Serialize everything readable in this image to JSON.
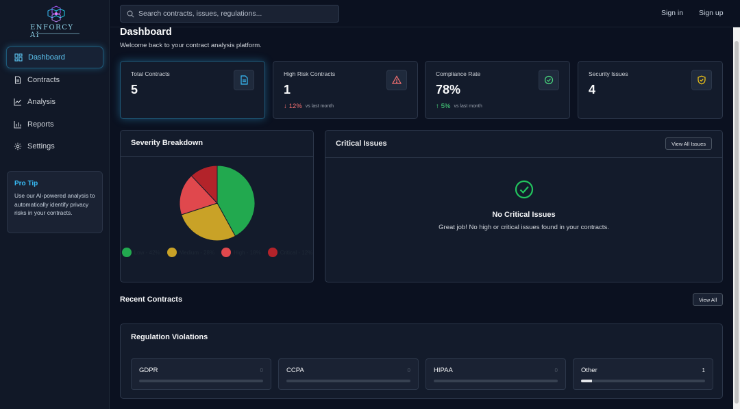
{
  "app": {
    "logo_text": "ENFORCY AI"
  },
  "sidebar": {
    "items": [
      {
        "label": "Dashboard",
        "icon": "dashboard-grid-icon",
        "active": true
      },
      {
        "label": "Contracts",
        "icon": "document-icon",
        "active": false
      },
      {
        "label": "Analysis",
        "icon": "line-chart-icon",
        "active": false
      },
      {
        "label": "Reports",
        "icon": "bar-chart-icon",
        "active": false
      },
      {
        "label": "Settings",
        "icon": "gear-icon",
        "active": false
      }
    ],
    "protip": {
      "title": "Pro Tip",
      "text": "Use our AI-powered analysis to automatically identify privacy risks in your contracts."
    }
  },
  "topbar": {
    "search_placeholder": "Search contracts, issues, regulations...",
    "sign_in": "Sign in",
    "sign_up": "Sign up"
  },
  "header": {
    "title": "Dashboard",
    "subtitle": "Welcome back to your contract analysis platform."
  },
  "stats": [
    {
      "label": "Total Contracts",
      "value": "5",
      "icon": "document-icon",
      "icon_color": "#38bdf8"
    },
    {
      "label": "High Risk Contracts",
      "value": "1",
      "icon": "warning-triangle-icon",
      "icon_color": "#f87171",
      "trend": {
        "direction": "down",
        "value": "12%",
        "note": "vs last month",
        "color": "#f87171"
      }
    },
    {
      "label": "Compliance Rate",
      "value": "78%",
      "icon": "check-circle-icon",
      "icon_color": "#4ade80",
      "trend": {
        "direction": "up",
        "value": "5%",
        "note": "vs last month",
        "color": "#4ade80"
      }
    },
    {
      "label": "Security Issues",
      "value": "4",
      "icon": "shield-check-icon",
      "icon_color": "#facc15"
    }
  ],
  "severity": {
    "title": "Severity Breakdown",
    "chart_data": {
      "type": "pie",
      "slices": [
        {
          "label": "Low - 42%",
          "value": 42,
          "color": "#22a94f"
        },
        {
          "label": "Medium - 28%",
          "value": 28,
          "color": "#c9a227"
        },
        {
          "label": "High - 18%",
          "value": 18,
          "color": "#e0484d"
        },
        {
          "label": "Critical - 12%",
          "value": 12,
          "color": "#b3232a"
        }
      ]
    }
  },
  "critical": {
    "title": "Critical Issues",
    "button": "View All Issues",
    "empty_title": "No Critical Issues",
    "empty_text": "Great job! No high or critical issues found in your contracts."
  },
  "recent": {
    "title": "Recent Contracts",
    "button": "View All"
  },
  "regulations": {
    "title": "Regulation Violations",
    "items": [
      {
        "name": "GDPR",
        "count": "0",
        "fraction": 0
      },
      {
        "name": "CCPA",
        "count": "0",
        "fraction": 0
      },
      {
        "name": "HIPAA",
        "count": "0",
        "fraction": 0
      },
      {
        "name": "Other",
        "count": "1",
        "fraction": 0.09
      }
    ]
  }
}
